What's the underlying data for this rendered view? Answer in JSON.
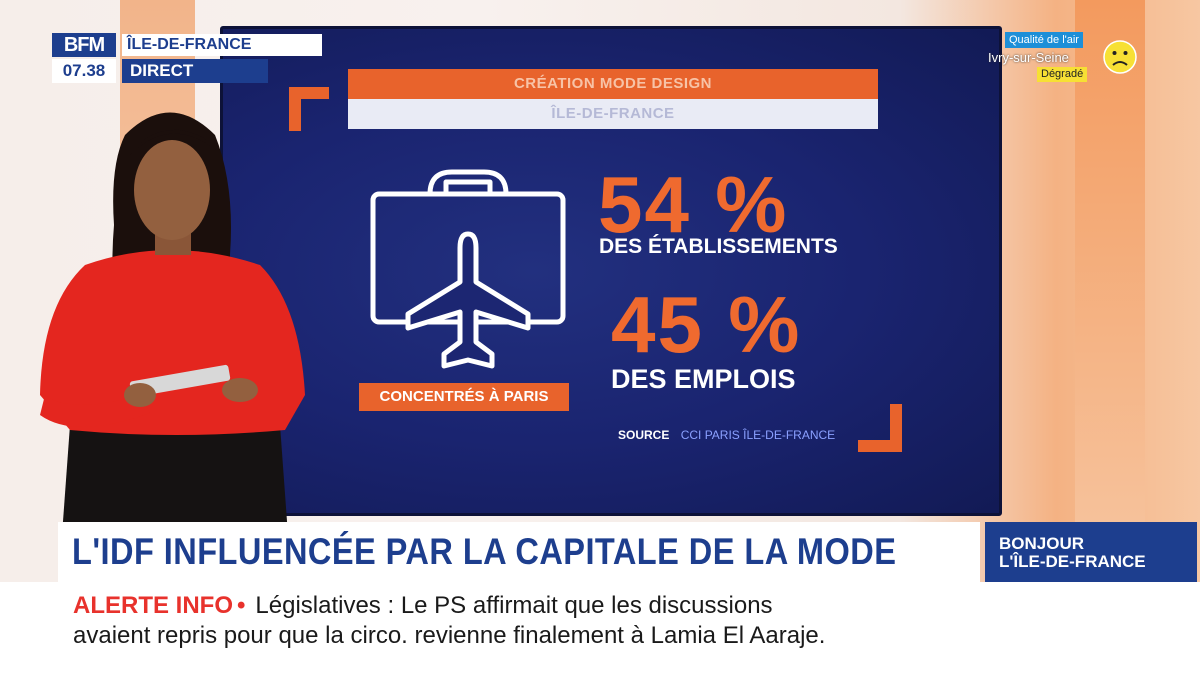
{
  "channel": {
    "logo_text": "BFM",
    "region": "ÎLE-DE-FRANCE",
    "time": "07.38",
    "live_label": "DIRECT"
  },
  "air_quality": {
    "title": "Qualité de l'air",
    "city": "Ivry-sur-Seine",
    "level": "Dégradé",
    "face_icon": "sad-face-icon",
    "level_color": "#f7e034"
  },
  "screen": {
    "title_line_1": "CRÉATION MODE DESIGN",
    "title_line_2": "ÎLE-DE-FRANCE",
    "icon": "suitcase-airplane-icon",
    "caption": "CONCENTRÉS À PARIS",
    "stats": [
      {
        "value": "54 %",
        "label": "DES ÉTABLISSEMENTS"
      },
      {
        "value": "45 %",
        "label": "DES EMPLOIS"
      }
    ],
    "source_label": "SOURCE",
    "source_value": "CCI PARIS ÎLE-DE-FRANCE",
    "accent_color": "#e8632c"
  },
  "headline": {
    "text": "L'IDF INFLUENCÉE PAR LA CAPITALE DE LA MODE",
    "show_line_1": "BONJOUR",
    "show_line_2": "L'ÎLE-DE-FRANCE"
  },
  "ticker": {
    "alert_label": "ALERTE INFO",
    "alert_separator": "•",
    "line_1": "Législatives : Le PS affirmait que les discussions",
    "line_2": "avaient repris pour que la circo. revienne finalement à Lamia El Aaraje."
  }
}
